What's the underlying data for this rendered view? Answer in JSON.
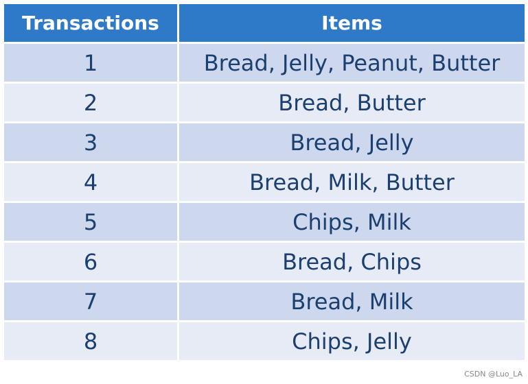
{
  "table": {
    "headers": {
      "transactions": "Transactions",
      "items": "Items"
    },
    "rows": [
      {
        "id": "1",
        "items": "Bread, Jelly, Peanut, Butter"
      },
      {
        "id": "2",
        "items": "Bread, Butter"
      },
      {
        "id": "3",
        "items": "Bread, Jelly"
      },
      {
        "id": "4",
        "items": "Bread, Milk, Butter"
      },
      {
        "id": "5",
        "items": "Chips, Milk"
      },
      {
        "id": "6",
        "items": "Bread, Chips"
      },
      {
        "id": "7",
        "items": "Bread, Milk"
      },
      {
        "id": "8",
        "items": "Chips, Jelly"
      }
    ]
  },
  "watermark": "CSDN @Luo_LA",
  "colors": {
    "header_bg": "#2f79c9",
    "row_odd_bg": "#cdd7ee",
    "row_even_bg": "#e7ebf5",
    "text": "#1b3f6e"
  }
}
